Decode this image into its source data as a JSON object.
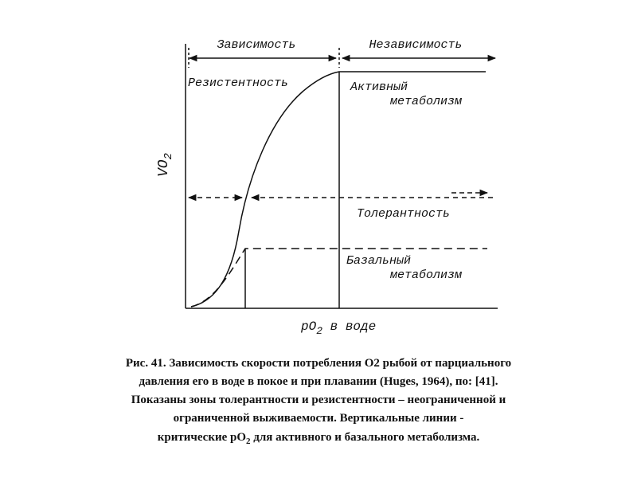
{
  "zones": {
    "dependence": "Зависимость",
    "independence": "Независимость"
  },
  "curve_labels": {
    "resistance": "Резистентность",
    "active": [
      "Активный",
      "метаболизм"
    ],
    "tolerance": "Толерантность",
    "basal": [
      "Базальный",
      "метаболизм"
    ]
  },
  "axes": {
    "y": {
      "main": "VO",
      "sub": "2"
    },
    "x": {
      "main": "pO",
      "sub": "2",
      "rest": " в воде"
    }
  },
  "caption": {
    "lines": [
      "Рис. 41. Зависимость скорости потребления О2 рыбой от парциального",
      "давления его в воде в покое и при плавании (Huges, 1964), по: [41].",
      "Показаны зоны толерантности и резистентности – неограниченной и",
      "ограниченной выживаемости. Вертикальные линии -"
    ],
    "last_line": {
      "start": "критические рО",
      "sub": "2",
      "end": " для активного и базального метаболизма."
    }
  }
}
